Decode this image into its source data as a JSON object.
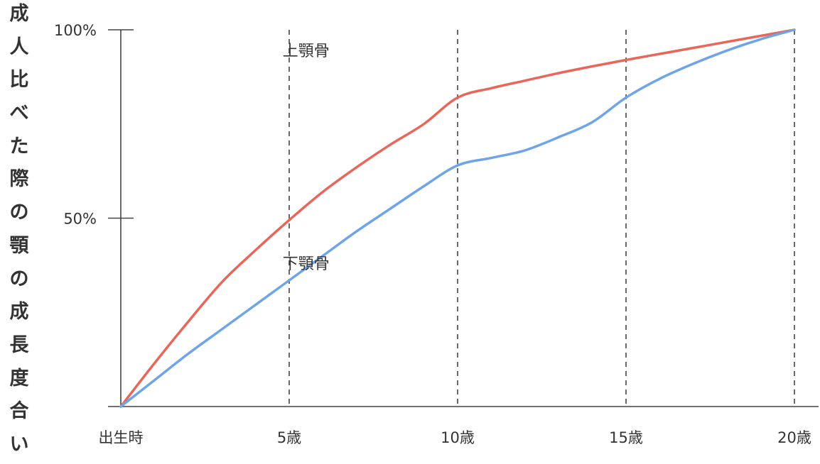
{
  "chart_data": {
    "type": "line",
    "ylabel": "成人比べた際の顎の成長度合い",
    "xlabel": "",
    "categories": [
      "出生時",
      "5歳",
      "10歳",
      "15歳",
      "20歳"
    ],
    "x_ages": [
      0,
      5,
      10,
      15,
      20
    ],
    "yticks": [
      {
        "value": 100,
        "label": "100%"
      },
      {
        "value": 50,
        "label": "50%"
      }
    ],
    "ylim": [
      0,
      100
    ],
    "xlim": [
      0,
      20
    ],
    "grid": "vertical-dashed",
    "series": [
      {
        "name": "上顎骨",
        "color": "#e8665a",
        "x": [
          0,
          1,
          2,
          3,
          4,
          5,
          6,
          7,
          8,
          9,
          10,
          11,
          12,
          13,
          14,
          15,
          16,
          17,
          18,
          19,
          20
        ],
        "values": [
          0,
          11.5,
          22.5,
          33,
          41.5,
          49.5,
          57,
          63.5,
          69.5,
          75,
          82,
          84.5,
          86.5,
          88.5,
          90.3,
          92,
          93.6,
          95.2,
          96.8,
          98.4,
          100
        ]
      },
      {
        "name": "下顎骨",
        "color": "#6fa4e6",
        "x": [
          0,
          1,
          2,
          3,
          4,
          5,
          6,
          7,
          8,
          9,
          10,
          11,
          12,
          13,
          14,
          15,
          16,
          17,
          18,
          19,
          20
        ],
        "values": [
          0,
          7,
          14,
          20.5,
          27,
          33.5,
          40,
          46.5,
          52.5,
          58.5,
          64,
          66,
          68,
          71.5,
          75.5,
          82,
          87,
          91,
          94.5,
          97.5,
          100
        ]
      }
    ],
    "annotations": [
      {
        "text": "上顎骨",
        "x": 5.5,
        "y": 93
      },
      {
        "text": "下顎骨",
        "x": 5.5,
        "y": 36.5
      }
    ]
  }
}
